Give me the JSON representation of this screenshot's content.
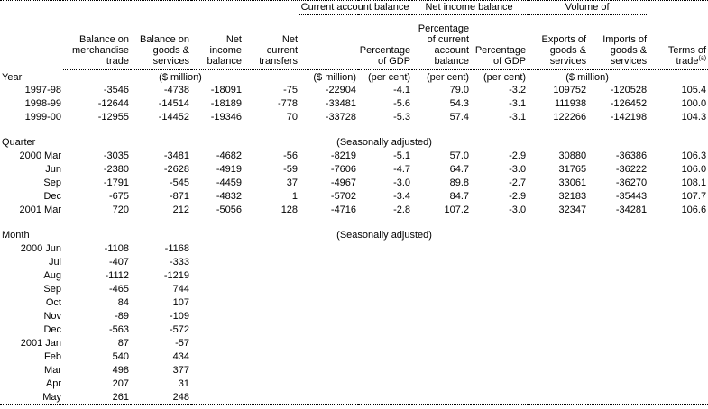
{
  "table": {
    "group_headers": [
      {
        "label": "Current account balance"
      },
      {
        "label": "Net income balance"
      },
      {
        "label": "Volume of"
      }
    ],
    "column_headers": {
      "balance_merchandise": "Balance on\nmerchandise\ntrade",
      "balance_goods_services": "Balance on\ngoods &\nservices",
      "net_income_balance": "Net\nincome\nbalance",
      "net_current_transfers": "Net\ncurrent\ntransfers",
      "ca_pct_gdp": "Percentage\nof GDP",
      "ni_pct_current_account": "Percentage\nof current\naccount\nbalance",
      "ni_pct_gdp": "Percentage\nof GDP",
      "exports_volume": "Exports of\ngoods &\nservices",
      "imports_volume": "Imports of\ngoods &\nservices",
      "terms_of_trade": "Terms of\ntrade",
      "terms_of_trade_footnote": "(a)"
    },
    "units_row": {
      "section_label": "Year",
      "merchandise_units": "($ million)",
      "ca_million": "($ million)",
      "ca_percent": "(per cent)",
      "ni_ca_percent": "(per cent)",
      "ni_gdp_percent": "(per cent)",
      "volume_units": "($ million)"
    },
    "sections": [
      {
        "name": "",
        "note": "",
        "rows": [
          [
            "1997-98",
            "-3546",
            "-4738",
            "-18091",
            "-75",
            "-22904",
            "-4.1",
            "79.0",
            "-3.2",
            "109752",
            "-120528",
            "105.4"
          ],
          [
            "1998-99",
            "-12644",
            "-14514",
            "-18189",
            "-778",
            "-33481",
            "-5.6",
            "54.3",
            "-3.1",
            "111938",
            "-126452",
            "100.0"
          ],
          [
            "1999-00",
            "-12955",
            "-14452",
            "-19346",
            "70",
            "-33728",
            "-5.3",
            "57.4",
            "-3.1",
            "122266",
            "-142198",
            "104.3"
          ]
        ]
      },
      {
        "name": "Quarter",
        "note": "(Seasonally adjusted)",
        "rows": [
          [
            "2000 Mar",
            "-3035",
            "-3481",
            "-4682",
            "-56",
            "-8219",
            "-5.1",
            "57.0",
            "-2.9",
            "30880",
            "-36386",
            "106.3"
          ],
          [
            "Jun",
            "-2380",
            "-2628",
            "-4919",
            "-59",
            "-7606",
            "-4.7",
            "64.7",
            "-3.0",
            "31765",
            "-36222",
            "106.0"
          ],
          [
            "Sep",
            "-1791",
            "-545",
            "-4459",
            "37",
            "-4967",
            "-3.0",
            "89.8",
            "-2.7",
            "33061",
            "-36270",
            "108.1"
          ],
          [
            "Dec",
            "-675",
            "-871",
            "-4832",
            "1",
            "-5702",
            "-3.4",
            "84.7",
            "-2.9",
            "32183",
            "-35443",
            "107.7"
          ],
          [
            "2001 Mar",
            "720",
            "212",
            "-5056",
            "128",
            "-4716",
            "-2.8",
            "107.2",
            "-3.0",
            "32347",
            "-34281",
            "106.6"
          ]
        ]
      },
      {
        "name": "Month",
        "note": "(Seasonally adjusted)",
        "rows": [
          [
            "2000 Jun",
            "-1108",
            "-1168",
            "",
            "",
            "",
            "",
            "",
            "",
            "",
            "",
            ""
          ],
          [
            "Jul",
            "-407",
            "-333",
            "",
            "",
            "",
            "",
            "",
            "",
            "",
            "",
            ""
          ],
          [
            "Aug",
            "-1112",
            "-1219",
            "",
            "",
            "",
            "",
            "",
            "",
            "",
            "",
            ""
          ],
          [
            "Sep",
            "-465",
            "744",
            "",
            "",
            "",
            "",
            "",
            "",
            "",
            "",
            ""
          ],
          [
            "Oct",
            "84",
            "107",
            "",
            "",
            "",
            "",
            "",
            "",
            "",
            "",
            ""
          ],
          [
            "Nov",
            "-89",
            "-109",
            "",
            "",
            "",
            "",
            "",
            "",
            "",
            "",
            ""
          ],
          [
            "Dec",
            "-563",
            "-572",
            "",
            "",
            "",
            "",
            "",
            "",
            "",
            "",
            ""
          ],
          [
            "2001 Jan",
            "87",
            "-57",
            "",
            "",
            "",
            "",
            "",
            "",
            "",
            "",
            ""
          ],
          [
            "Feb",
            "540",
            "434",
            "",
            "",
            "",
            "",
            "",
            "",
            "",
            "",
            ""
          ],
          [
            "Mar",
            "498",
            "377",
            "",
            "",
            "",
            "",
            "",
            "",
            "",
            "",
            ""
          ],
          [
            "Apr",
            "207",
            "31",
            "",
            "",
            "",
            "",
            "",
            "",
            "",
            "",
            ""
          ],
          [
            "May",
            "261",
            "248",
            "",
            "",
            "",
            "",
            "",
            "",
            "",
            "",
            ""
          ]
        ]
      }
    ]
  }
}
